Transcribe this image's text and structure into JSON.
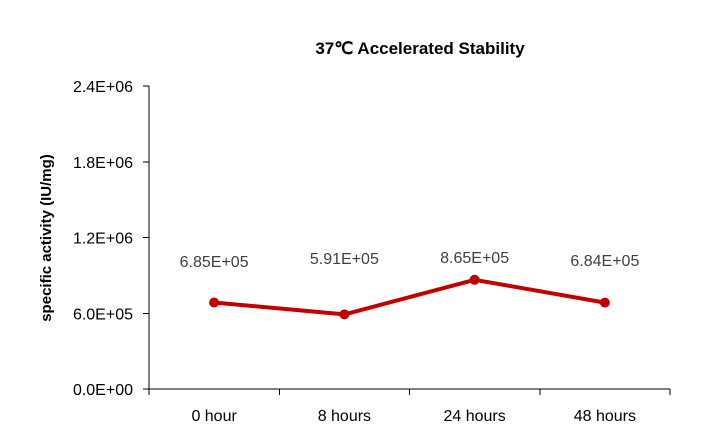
{
  "chart_data": {
    "type": "line",
    "title": "37℃ Accelerated  Stability",
    "xlabel": "",
    "ylabel": "specific activity (IU/mg)",
    "categories": [
      "0 hour",
      "8 hours",
      "24 hours",
      "48 hours"
    ],
    "series": [
      {
        "values": [
          685000,
          591000,
          865000,
          684000
        ]
      }
    ],
    "data_labels": [
      "6.85E+05",
      "5.91E+05",
      "8.65E+05",
      "6.84E+05"
    ],
    "ylim": [
      0,
      2400000
    ],
    "yticks": [
      {
        "value": 0,
        "label": "0.0E+00"
      },
      {
        "value": 600000,
        "label": "6.0E+05"
      },
      {
        "value": 1200000,
        "label": "1.2E+06"
      },
      {
        "value": 1800000,
        "label": "1.8E+06"
      },
      {
        "value": 2400000,
        "label": "2.4E+06"
      }
    ],
    "grid": false,
    "legend": "none",
    "line_color": "#C00000"
  }
}
